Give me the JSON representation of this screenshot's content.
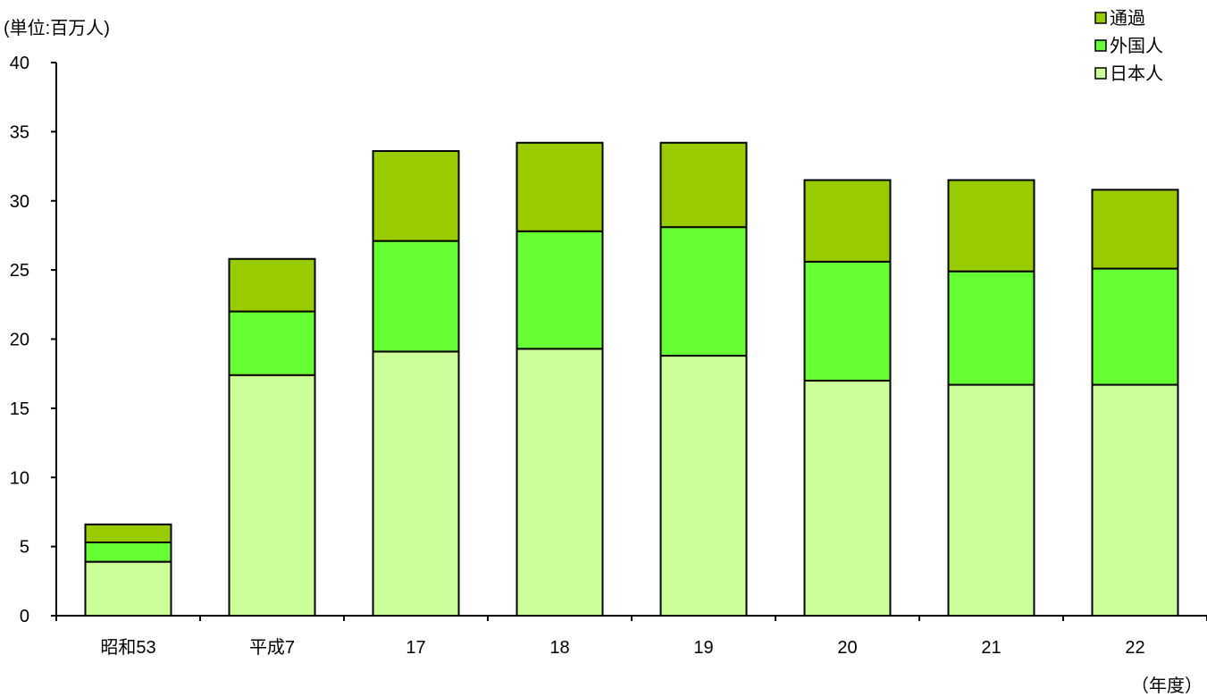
{
  "chart_data": {
    "type": "bar",
    "stacked": true,
    "y_unit_label": "(単位:百万人)",
    "x_unit_label": "（年度）",
    "categories": [
      "昭和53",
      "平成7",
      "17",
      "18",
      "19",
      "20",
      "21",
      "22"
    ],
    "series": [
      {
        "name": "日本人",
        "color": "#ccff99",
        "values": [
          3.9,
          17.4,
          19.1,
          19.3,
          18.8,
          17.0,
          16.7,
          16.7
        ]
      },
      {
        "name": "外国人",
        "color": "#66ff33",
        "values": [
          1.4,
          4.6,
          8.0,
          8.5,
          9.3,
          8.6,
          8.2,
          8.4
        ]
      },
      {
        "name": "通過",
        "color": "#99cc00",
        "values": [
          1.3,
          3.8,
          6.5,
          6.4,
          6.1,
          5.9,
          6.6,
          5.7
        ]
      }
    ],
    "ylim": [
      0,
      40
    ],
    "yticks": [
      0,
      5,
      10,
      15,
      20,
      25,
      30,
      35,
      40
    ],
    "legend_position": "top-right",
    "legend_order": [
      "通過",
      "外国人",
      "日本人"
    ],
    "grid": false
  }
}
